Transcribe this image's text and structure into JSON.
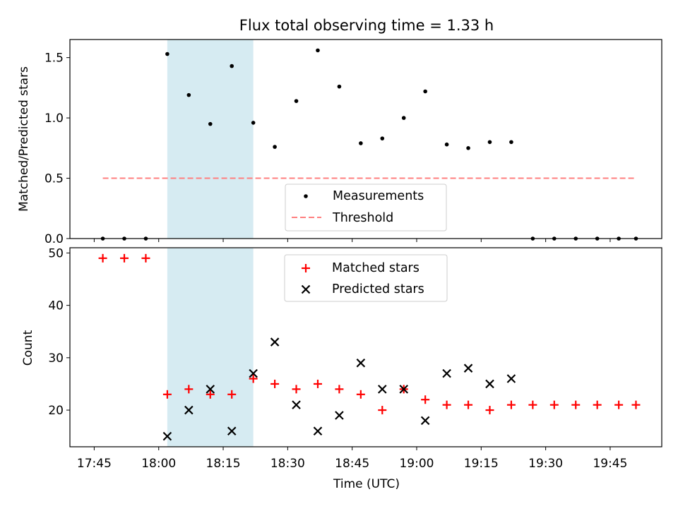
{
  "chart_data": [
    {
      "type": "scatter",
      "title": "Flux total observing time = 1.33 h",
      "xlabel": "",
      "ylabel": "Matched/Predicted stars",
      "ylim": [
        0,
        1.65
      ],
      "y_ticks": [
        "0.0",
        "0.5",
        "1.0",
        "1.5"
      ],
      "x_unit": "minutes",
      "legend_position": "lower-center",
      "legend": [
        "Measurements",
        "Threshold"
      ],
      "shaded_interval": [
        "18:02",
        "18:22"
      ],
      "threshold": {
        "value": 0.5,
        "x_range": [
          "17:47",
          "19:51"
        ],
        "color": "#ff7f7f",
        "style": "dashed"
      },
      "series": [
        {
          "name": "Measurements",
          "color": "#000000",
          "marker": "dot",
          "points": [
            [
              "17:47",
              0.0
            ],
            [
              "17:52",
              0.0
            ],
            [
              "17:57",
              0.0
            ],
            [
              "18:02",
              1.53
            ],
            [
              "18:07",
              1.19
            ],
            [
              "18:12",
              0.95
            ],
            [
              "18:17",
              1.43
            ],
            [
              "18:22",
              0.96
            ],
            [
              "18:27",
              0.76
            ],
            [
              "18:32",
              1.14
            ],
            [
              "18:37",
              1.56
            ],
            [
              "18:42",
              1.26
            ],
            [
              "18:47",
              0.79
            ],
            [
              "18:52",
              0.83
            ],
            [
              "18:57",
              1.0
            ],
            [
              "19:02",
              1.22
            ],
            [
              "19:07",
              0.78
            ],
            [
              "19:12",
              0.75
            ],
            [
              "19:17",
              0.8
            ],
            [
              "19:22",
              0.8
            ],
            [
              "19:27",
              0.0
            ],
            [
              "19:32",
              0.0
            ],
            [
              "19:37",
              0.0
            ],
            [
              "19:42",
              0.0
            ],
            [
              "19:47",
              0.0
            ],
            [
              "19:51",
              0.0
            ]
          ]
        }
      ]
    },
    {
      "type": "scatter",
      "title": "",
      "xlabel": "Time (UTC)",
      "ylabel": "Count",
      "ylim": [
        13,
        51
      ],
      "y_ticks": [
        "20",
        "30",
        "40",
        "50"
      ],
      "x_ticks": [
        "17:45",
        "18:00",
        "18:15",
        "18:30",
        "18:45",
        "19:00",
        "19:15",
        "19:30",
        "19:45"
      ],
      "legend_position": "upper-center",
      "legend": [
        "Matched stars",
        "Predicted stars"
      ],
      "shaded_interval": [
        "18:02",
        "18:22"
      ],
      "series": [
        {
          "name": "Matched stars",
          "color": "#ff0000",
          "marker": "plus",
          "points": [
            [
              "17:47",
              49
            ],
            [
              "17:52",
              49
            ],
            [
              "17:57",
              49
            ],
            [
              "18:02",
              23
            ],
            [
              "18:07",
              24
            ],
            [
              "18:12",
              23
            ],
            [
              "18:17",
              23
            ],
            [
              "18:22",
              26
            ],
            [
              "18:27",
              25
            ],
            [
              "18:32",
              24
            ],
            [
              "18:37",
              25
            ],
            [
              "18:42",
              24
            ],
            [
              "18:47",
              23
            ],
            [
              "18:52",
              20
            ],
            [
              "18:57",
              24
            ],
            [
              "19:02",
              22
            ],
            [
              "19:07",
              21
            ],
            [
              "19:12",
              21
            ],
            [
              "19:17",
              20
            ],
            [
              "19:22",
              21
            ],
            [
              "19:27",
              21
            ],
            [
              "19:32",
              21
            ],
            [
              "19:37",
              21
            ],
            [
              "19:42",
              21
            ],
            [
              "19:47",
              21
            ],
            [
              "19:51",
              21
            ]
          ]
        },
        {
          "name": "Predicted stars",
          "color": "#000000",
          "marker": "x",
          "points": [
            [
              "18:02",
              15
            ],
            [
              "18:07",
              20
            ],
            [
              "18:12",
              24
            ],
            [
              "18:17",
              16
            ],
            [
              "18:22",
              27
            ],
            [
              "18:27",
              33
            ],
            [
              "18:32",
              21
            ],
            [
              "18:37",
              16
            ],
            [
              "18:42",
              19
            ],
            [
              "18:47",
              29
            ],
            [
              "18:52",
              24
            ],
            [
              "18:57",
              24
            ],
            [
              "19:02",
              18
            ],
            [
              "19:07",
              27
            ],
            [
              "19:12",
              28
            ],
            [
              "19:17",
              25
            ],
            [
              "19:22",
              26
            ]
          ]
        }
      ]
    }
  ],
  "colors": {
    "shade": "#add8e6",
    "threshold": "#ff7f7f",
    "matched": "#ff0000",
    "predicted": "#000000",
    "measurement": "#000000"
  }
}
